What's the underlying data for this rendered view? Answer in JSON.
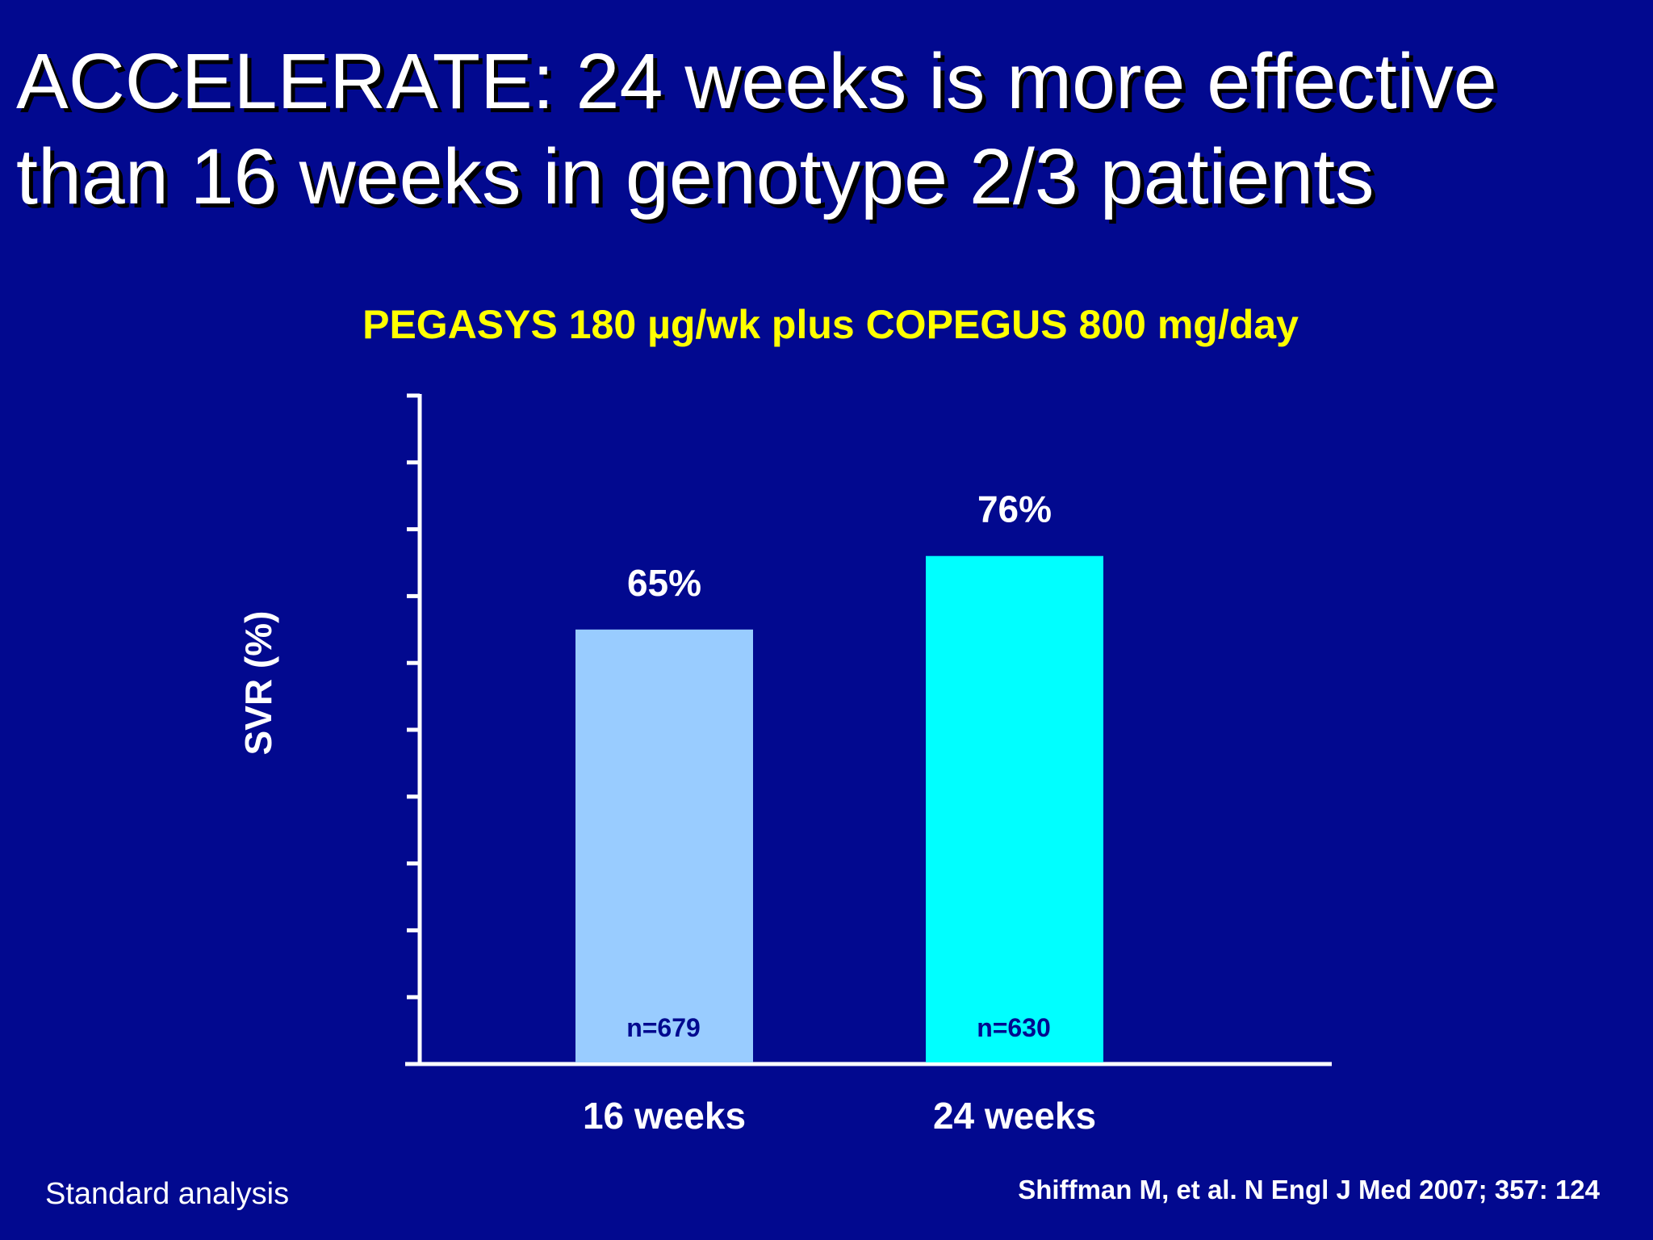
{
  "slide": {
    "title_line1": "ACCELERATE: 24 weeks is more effective",
    "title_line2": "than 16 weeks in genotype 2/3 patients",
    "background_color": "#02098f",
    "footnote_left": "Standard analysis",
    "citation": "Shiffman M, et al. N Engl J Med 2007; 357: 124"
  },
  "chart_data": {
    "type": "bar",
    "title": "",
    "subtitle": "PEGASYS 180 µg/wk plus COPEGUS 800 mg/day",
    "xlabel": "",
    "ylabel": "SVR (%)",
    "ylim": [
      0,
      100
    ],
    "y_tick_labels_shown": false,
    "y_minor_ticks": 10,
    "grid": false,
    "categories": [
      "16 weeks",
      "24 weeks"
    ],
    "values": [
      65,
      76
    ],
    "value_labels": [
      "65%",
      "76%"
    ],
    "n_labels": [
      "n=679",
      "n=630"
    ],
    "colors": [
      "#99ccff",
      "#00ffff"
    ],
    "axis_color": "#ffffff",
    "n_label_color": "#02098f",
    "subtitle_color": "#ffff00"
  }
}
